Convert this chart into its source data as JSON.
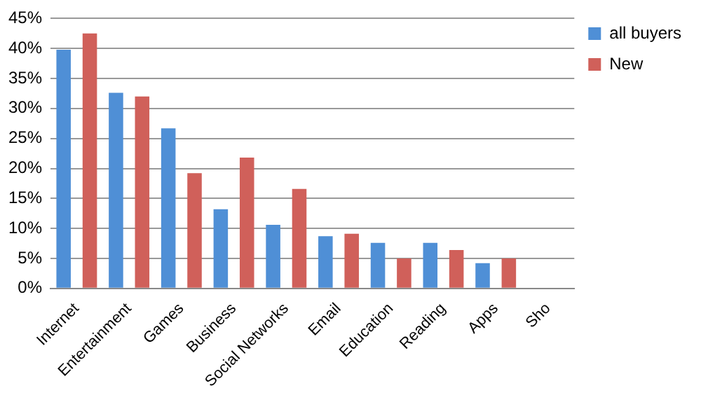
{
  "chart_data": {
    "type": "bar",
    "categories": [
      "Internet",
      "Entertainment",
      "Games",
      "Business",
      "Social Networks",
      "Email",
      "Education",
      "Reading",
      "Apps",
      "Sho"
    ],
    "series": [
      {
        "name": "all buyers",
        "color": "#4f8fd6",
        "values": [
          39.8,
          32.6,
          26.7,
          13.2,
          10.6,
          8.7,
          7.6,
          7.6,
          4.2,
          null
        ]
      },
      {
        "name": "New",
        "color": "#d0605a",
        "values": [
          42.5,
          32.0,
          19.2,
          21.8,
          16.6,
          9.1,
          5.0,
          6.4,
          5.0,
          null
        ]
      }
    ],
    "ylim": [
      0,
      45
    ],
    "yticks": [
      {
        "value": 0,
        "label": "0%"
      },
      {
        "value": 5,
        "label": "5%"
      },
      {
        "value": 10,
        "label": "10%"
      },
      {
        "value": 15,
        "label": "15%"
      },
      {
        "value": 20,
        "label": "20%"
      },
      {
        "value": 25,
        "label": "25%"
      },
      {
        "value": 30,
        "label": "30%"
      },
      {
        "value": 35,
        "label": "35%"
      },
      {
        "value": 40,
        "label": "40%"
      },
      {
        "value": 45,
        "label": "45%"
      }
    ],
    "grid": "y",
    "legend": "right"
  }
}
